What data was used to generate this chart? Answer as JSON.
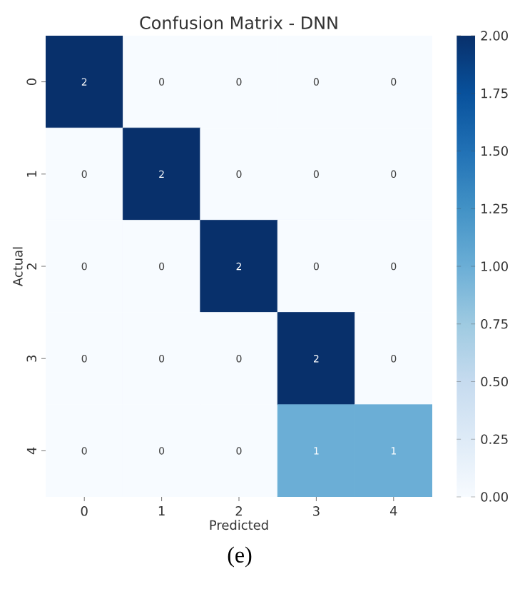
{
  "chart_data": {
    "type": "heatmap",
    "title": "Confusion Matrix - DNN",
    "xlabel": "Predicted",
    "ylabel": "Actual",
    "categories": [
      "0",
      "1",
      "2",
      "3",
      "4"
    ],
    "y_categories": [
      "0",
      "1",
      "2",
      "3",
      "4"
    ],
    "cells": [
      [
        2,
        0,
        0,
        0,
        0
      ],
      [
        0,
        2,
        0,
        0,
        0
      ],
      [
        0,
        0,
        2,
        0,
        0
      ],
      [
        0,
        0,
        0,
        2,
        0
      ],
      [
        0,
        0,
        0,
        1,
        1
      ]
    ],
    "data_labels": true,
    "clim": [
      0,
      2
    ],
    "cticks": [
      {
        "value": 0,
        "label": "0.00"
      },
      {
        "value": 0.25,
        "label": "0.25"
      },
      {
        "value": 0.5,
        "label": "0.50"
      },
      {
        "value": 0.75,
        "label": "0.75"
      },
      {
        "value": 1,
        "label": "1.00"
      },
      {
        "value": 1.25,
        "label": "1.25"
      },
      {
        "value": 1.5,
        "label": "1.50"
      },
      {
        "value": 1.75,
        "label": "1.75"
      },
      {
        "value": 2,
        "label": "2.00"
      }
    ],
    "annotations": [
      "(e)"
    ]
  }
}
